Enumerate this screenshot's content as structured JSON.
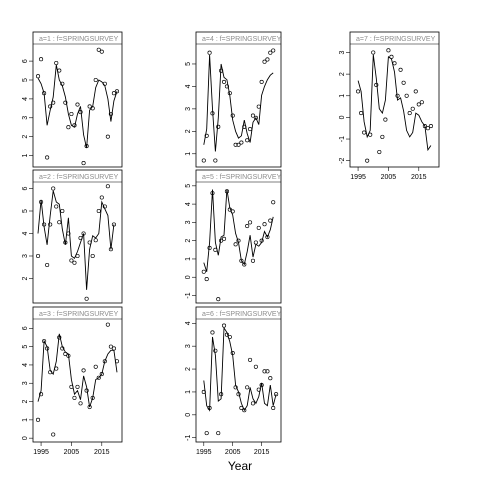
{
  "figure": {
    "xlabel": "Year"
  },
  "chart_data": [
    {
      "type": "line",
      "strip_label": "a=1 : f=SPRINGSURVEY",
      "xlim": [
        1993,
        2021
      ],
      "ylim": [
        0.5,
        6.8
      ],
      "y_ticks": [
        1,
        2,
        3,
        4,
        5,
        6
      ],
      "x_ticks": [
        1995,
        2005,
        2015
      ],
      "show_x_ticks": false,
      "observed": {
        "x": [
          1994,
          1995,
          1996,
          1997,
          1998,
          1999,
          2000,
          2001,
          2002,
          2003,
          2004,
          2005,
          2006,
          2007,
          2008,
          2009,
          2010,
          2011,
          2012,
          2013,
          2014,
          2015,
          2016,
          2017,
          2018,
          2019,
          2020
        ],
        "y": [
          5.2,
          6.1,
          4.3,
          0.9,
          3.6,
          3.8,
          5.9,
          5.5,
          4.8,
          3.8,
          2.5,
          3.2,
          2.6,
          3.7,
          3.3,
          0.6,
          1.5,
          3.6,
          3.5,
          5.0,
          6.6,
          6.5,
          4.8,
          2.0,
          3.2,
          4.3,
          4.4
        ]
      },
      "fitted": {
        "x": [
          1994,
          1995,
          1996,
          1997,
          1998,
          1999,
          2000,
          2001,
          2002,
          2003,
          2004,
          2005,
          2006,
          2007,
          2008,
          2009,
          2010,
          2011,
          2012,
          2013,
          2014,
          2015,
          2016,
          2017,
          2018,
          2019,
          2020
        ],
        "y": [
          5.1,
          4.8,
          4.3,
          2.6,
          3.4,
          4.1,
          5.8,
          5.0,
          4.7,
          4.1,
          3.2,
          2.6,
          2.5,
          3.2,
          3.6,
          2.1,
          1.4,
          3.4,
          3.6,
          4.6,
          5.0,
          4.9,
          4.7,
          4.0,
          2.8,
          3.9,
          4.4
        ]
      }
    },
    {
      "type": "line",
      "strip_label": "a=2 : f=SPRINGSURVEY",
      "xlim": [
        1993,
        2021
      ],
      "ylim": [
        1.0,
        6.2
      ],
      "y_ticks": [
        2,
        3,
        4,
        5,
        6
      ],
      "x_ticks": [
        1995,
        2005,
        2015
      ],
      "show_x_ticks": false,
      "observed": {
        "x": [
          1994,
          1995,
          1996,
          1997,
          1998,
          1999,
          2000,
          2001,
          2002,
          2003,
          2004,
          2005,
          2006,
          2007,
          2008,
          2009,
          2010,
          2011,
          2012,
          2013,
          2014,
          2015,
          2016,
          2017,
          2018,
          2019
        ],
        "y": [
          3.0,
          5.4,
          4.4,
          2.6,
          4.4,
          6.0,
          5.2,
          4.5,
          5.0,
          3.6,
          4.0,
          2.8,
          2.7,
          3.0,
          3.8,
          4.0,
          1.1,
          3.6,
          3.0,
          3.7,
          5.0,
          5.6,
          5.2,
          6.1,
          3.3,
          4.4
        ]
      },
      "fitted": {
        "x": [
          1994,
          1995,
          1996,
          1997,
          1998,
          1999,
          2000,
          2001,
          2002,
          2003,
          2004,
          2005,
          2006,
          2007,
          2008,
          2009,
          2010,
          2011,
          2012,
          2013,
          2014,
          2015,
          2016,
          2017,
          2018,
          2019
        ],
        "y": [
          4.0,
          5.5,
          4.3,
          3.5,
          4.8,
          5.9,
          5.4,
          5.3,
          4.2,
          3.5,
          4.7,
          3.0,
          2.9,
          3.2,
          3.6,
          4.0,
          1.5,
          3.3,
          3.9,
          3.8,
          4.0,
          5.4,
          5.1,
          4.8,
          3.3,
          4.4
        ]
      }
    },
    {
      "type": "line",
      "strip_label": "a=3 : f=SPRINGSURVEY",
      "xlim": [
        1993,
        2021
      ],
      "ylim": [
        -0.1,
        6.4
      ],
      "y_ticks": [
        0,
        1,
        2,
        3,
        4,
        5,
        6
      ],
      "x_ticks": [
        1995,
        2005,
        2015
      ],
      "show_x_ticks": true,
      "observed": {
        "x": [
          1994,
          1995,
          1996,
          1997,
          1998,
          1999,
          2000,
          2001,
          2002,
          2003,
          2004,
          2005,
          2006,
          2007,
          2008,
          2009,
          2010,
          2011,
          2012,
          2013,
          2014,
          2015,
          2016,
          2017,
          2018,
          2019,
          2020
        ],
        "y": [
          1.0,
          2.4,
          5.3,
          4.9,
          3.6,
          0.2,
          3.8,
          5.5,
          4.9,
          4.6,
          4.5,
          2.8,
          2.2,
          2.8,
          1.9,
          3.7,
          2.6,
          1.7,
          2.2,
          3.9,
          3.3,
          3.5,
          4.2,
          6.2,
          5.0,
          4.9,
          4.2
        ]
      },
      "fitted": {
        "x": [
          1994,
          1995,
          1996,
          1997,
          1998,
          1999,
          2000,
          2001,
          2002,
          2003,
          2004,
          2005,
          2006,
          2007,
          2008,
          2009,
          2010,
          2011,
          2012,
          2013,
          2014,
          2015,
          2016,
          2017,
          2018,
          2019,
          2020
        ],
        "y": [
          2.0,
          2.6,
          5.3,
          5.0,
          3.7,
          3.5,
          4.2,
          5.7,
          5.0,
          4.7,
          4.6,
          3.2,
          2.4,
          2.6,
          2.1,
          3.4,
          2.8,
          1.7,
          2.2,
          3.2,
          3.3,
          3.5,
          4.2,
          4.6,
          4.8,
          4.8,
          3.6
        ]
      }
    },
    {
      "type": "line",
      "strip_label": "a=4 : f=SPRINGSURVEY",
      "xlim": [
        1993,
        2021
      ],
      "ylim": [
        0.5,
        5.8
      ],
      "y_ticks": [
        1,
        2,
        3,
        4,
        5
      ],
      "x_ticks": [
        1995,
        2005,
        2015
      ],
      "show_x_ticks": false,
      "observed": {
        "x": [
          1995,
          1996,
          1997,
          1998,
          1999,
          2000,
          2001,
          2002,
          2003,
          2004,
          2005,
          2006,
          2007,
          2008,
          2009,
          2010,
          2011,
          2012,
          2013,
          2014,
          2015,
          2016,
          2017,
          2018,
          2019
        ],
        "y": [
          0.7,
          1.8,
          5.5,
          2.8,
          0.7,
          2.2,
          4.7,
          4.2,
          4.0,
          3.7,
          2.7,
          1.4,
          1.4,
          1.5,
          2.2,
          1.6,
          2.1,
          2.7,
          2.6,
          3.1,
          4.2,
          5.1,
          5.2,
          5.5,
          5.6
        ]
      },
      "fitted": {
        "x": [
          1995,
          1996,
          1997,
          1998,
          1999,
          2000,
          2001,
          2002,
          2003,
          2004,
          2005,
          2006,
          2007,
          2008,
          2009,
          2010,
          2011,
          2012,
          2013,
          2014,
          2015,
          2016,
          2017,
          2018,
          2019
        ],
        "y": [
          1.4,
          2.1,
          5.4,
          3.0,
          1.1,
          2.6,
          5.0,
          4.4,
          4.3,
          3.6,
          2.5,
          2.0,
          1.7,
          1.8,
          2.5,
          1.9,
          1.5,
          2.4,
          2.6,
          2.3,
          3.6,
          4.0,
          4.3,
          4.5,
          4.6
        ]
      }
    },
    {
      "type": "line",
      "strip_label": "a=5 : f=SPRINGSURVEY",
      "xlim": [
        1993,
        2021
      ],
      "ylim": [
        -1.3,
        5.1
      ],
      "y_ticks": [
        -1,
        0,
        1,
        2,
        3,
        4,
        5
      ],
      "x_ticks": [
        1995,
        2005,
        2015
      ],
      "show_x_ticks": false,
      "observed": {
        "x": [
          1995,
          1996,
          1997,
          1998,
          1999,
          2000,
          2001,
          2002,
          2003,
          2004,
          2005,
          2006,
          2007,
          2008,
          2009,
          2010,
          2011,
          2012,
          2013,
          2014,
          2015,
          2016,
          2017,
          2018,
          2019
        ],
        "y": [
          0.3,
          -0.1,
          1.6,
          4.6,
          1.5,
          -1.2,
          2.0,
          2.1,
          4.7,
          3.7,
          3.6,
          1.8,
          2.0,
          0.9,
          0.7,
          2.8,
          3.0,
          0.9,
          1.9,
          2.7,
          2.0,
          2.9,
          2.2,
          3.1,
          4.1
        ]
      },
      "fitted": {
        "x": [
          1995,
          1996,
          1997,
          1998,
          1999,
          2000,
          2001,
          2002,
          2003,
          2004,
          2005,
          2006,
          2007,
          2008,
          2009,
          2010,
          2011,
          2012,
          2013,
          2014,
          2015,
          2016,
          2017,
          2018,
          2019
        ],
        "y": [
          0.8,
          0.3,
          1.9,
          4.8,
          1.9,
          1.2,
          2.2,
          2.3,
          4.8,
          3.8,
          3.4,
          2.4,
          1.9,
          0.9,
          0.7,
          1.4,
          2.3,
          1.1,
          1.8,
          1.7,
          1.9,
          2.5,
          2.2,
          2.6,
          3.3
        ]
      }
    },
    {
      "type": "line",
      "strip_label": "a=6 : f=SPRINGSURVEY",
      "xlim": [
        1993,
        2021
      ],
      "ylim": [
        -1.1,
        4.1
      ],
      "y_ticks": [
        -1,
        0,
        1,
        2,
        3,
        4
      ],
      "x_ticks": [
        1995,
        2005,
        2015
      ],
      "show_x_ticks": true,
      "observed": {
        "x": [
          1995,
          1996,
          1997,
          1998,
          1999,
          2000,
          2001,
          2002,
          2003,
          2004,
          2005,
          2006,
          2007,
          2008,
          2009,
          2010,
          2011,
          2012,
          2013,
          2014,
          2015,
          2016,
          2017,
          2018,
          2019,
          2020
        ],
        "y": [
          1.0,
          -0.8,
          0.3,
          3.6,
          2.8,
          -0.8,
          0.9,
          3.9,
          3.5,
          3.4,
          2.7,
          1.2,
          0.9,
          0.3,
          0.2,
          1.2,
          2.4,
          0.5,
          2.1,
          1.1,
          1.3,
          1.9,
          1.9,
          1.6,
          0.3,
          0.9
        ]
      },
      "fitted": {
        "x": [
          1995,
          1996,
          1997,
          1998,
          1999,
          2000,
          2001,
          2002,
          2003,
          2004,
          2005,
          2006,
          2007,
          2008,
          2009,
          2010,
          2011,
          2012,
          2013,
          2014,
          2015,
          2016,
          2017,
          2018,
          2019,
          2020
        ],
        "y": [
          1.5,
          0.4,
          0.2,
          3.4,
          2.6,
          0.6,
          0.7,
          3.8,
          3.6,
          3.2,
          2.6,
          1.3,
          1.0,
          0.5,
          0.2,
          0.4,
          1.2,
          0.7,
          0.5,
          0.8,
          1.4,
          0.5,
          0.4,
          1.3,
          0.4,
          0.9
        ]
      }
    },
    {
      "type": "line",
      "strip_label": "a=7 : f=SPRINGSURVEY",
      "xlim": [
        1993,
        2021
      ],
      "ylim": [
        -2.2,
        3.3
      ],
      "y_ticks": [
        -2,
        -1,
        0,
        1,
        2,
        3
      ],
      "x_ticks": [
        1995,
        2005,
        2015
      ],
      "show_x_ticks": true,
      "observed": {
        "x": [
          1995,
          1996,
          1997,
          1998,
          1999,
          2000,
          2001,
          2002,
          2003,
          2004,
          2005,
          2006,
          2007,
          2008,
          2009,
          2010,
          2011,
          2012,
          2013,
          2014,
          2015,
          2016,
          2017,
          2018,
          2019
        ],
        "y": [
          1.2,
          0.2,
          -0.7,
          -2.0,
          -0.8,
          3.0,
          1.5,
          -1.6,
          -0.9,
          -0.1,
          3.1,
          2.8,
          2.5,
          1.0,
          2.2,
          1.6,
          1.0,
          0.2,
          0.4,
          1.2,
          0.6,
          0.7,
          -0.4,
          -0.5,
          -0.4
        ]
      },
      "fitted": {
        "x": [
          1995,
          1996,
          1997,
          1998,
          1999,
          2000,
          2001,
          2002,
          2003,
          2004,
          2005,
          2006,
          2007,
          2008,
          2009,
          2010,
          2011,
          2012,
          2013,
          2014,
          2015,
          2016,
          2017,
          2018,
          2019
        ],
        "y": [
          1.7,
          1.2,
          -0.2,
          -0.9,
          -0.6,
          2.9,
          1.8,
          0.4,
          0.2,
          0.8,
          2.8,
          2.7,
          2.1,
          0.8,
          0.9,
          0.3,
          -0.6,
          -0.9,
          -0.7,
          0.2,
          0.1,
          -0.2,
          -0.4,
          -1.5,
          -1.3
        ]
      }
    }
  ]
}
